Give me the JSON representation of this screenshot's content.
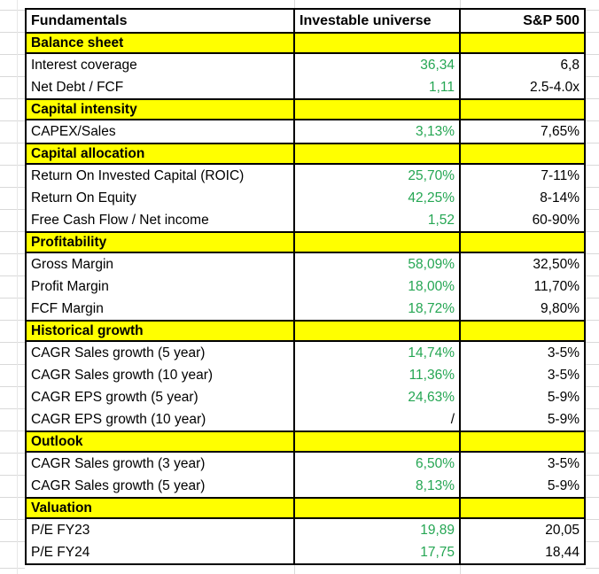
{
  "colors": {
    "section_background": "#ffff00",
    "universe_value_green": "#25a653",
    "table_border": "#000000",
    "gridline": "#d9d9d9",
    "text": "#000000"
  },
  "table": {
    "columns": [
      {
        "label": "Fundamentals"
      },
      {
        "label": "Investable universe"
      },
      {
        "label": "S&P 500"
      }
    ],
    "rows": [
      {
        "type": "section",
        "label": "Balance sheet",
        "universe": "",
        "sp500": ""
      },
      {
        "type": "data",
        "label": "Interest coverage",
        "universe": "36,34",
        "sp500": "6,8"
      },
      {
        "type": "data",
        "label": "Net Debt / FCF",
        "universe": "1,11",
        "sp500": "2.5-4.0x"
      },
      {
        "type": "section",
        "label": "Capital intensity",
        "universe": "",
        "sp500": ""
      },
      {
        "type": "data",
        "label": "CAPEX/Sales",
        "universe": "3,13%",
        "sp500": "7,65%"
      },
      {
        "type": "section",
        "label": "Capital allocation",
        "universe": "",
        "sp500": ""
      },
      {
        "type": "data",
        "label": "Return On Invested Capital (ROIC)",
        "universe": "25,70%",
        "sp500": "7-11%"
      },
      {
        "type": "data",
        "label": "Return On Equity",
        "universe": "42,25%",
        "sp500": "8-14%"
      },
      {
        "type": "data",
        "label": "Free Cash Flow / Net income",
        "universe": "1,52",
        "sp500": "60-90%"
      },
      {
        "type": "section",
        "label": "Profitability",
        "universe": "",
        "sp500": ""
      },
      {
        "type": "data",
        "label": "Gross Margin",
        "universe": "58,09%",
        "sp500": "32,50%"
      },
      {
        "type": "data",
        "label": "Profit Margin",
        "universe": "18,00%",
        "sp500": "11,70%"
      },
      {
        "type": "data",
        "label": "FCF Margin",
        "universe": "18,72%",
        "sp500": "9,80%"
      },
      {
        "type": "section",
        "label": "Historical growth",
        "universe": "",
        "sp500": ""
      },
      {
        "type": "data",
        "label": "CAGR Sales growth (5 year)",
        "universe": "14,74%",
        "sp500": "3-5%"
      },
      {
        "type": "data",
        "label": "CAGR Sales growth (10 year)",
        "universe": "11,36%",
        "sp500": "3-5%"
      },
      {
        "type": "data",
        "label": "CAGR EPS growth (5 year)",
        "universe": "24,63%",
        "sp500": "5-9%"
      },
      {
        "type": "data",
        "label": "CAGR EPS growth (10 year)",
        "universe": "/",
        "sp500": "5-9%"
      },
      {
        "type": "section",
        "label": "Outlook",
        "universe": "",
        "sp500": ""
      },
      {
        "type": "data",
        "label": "CAGR Sales growth (3 year)",
        "universe": "6,50%",
        "sp500": "3-5%"
      },
      {
        "type": "data",
        "label": "CAGR Sales growth (5 year)",
        "universe": "8,13%",
        "sp500": "5-9%"
      },
      {
        "type": "section",
        "label": "Valuation",
        "universe": "",
        "sp500": ""
      },
      {
        "type": "data",
        "label": "P/E FY23",
        "universe": "19,89",
        "sp500": "20,05"
      },
      {
        "type": "data",
        "label": "P/E FY24",
        "universe": "17,75",
        "sp500": "18,44"
      }
    ]
  }
}
